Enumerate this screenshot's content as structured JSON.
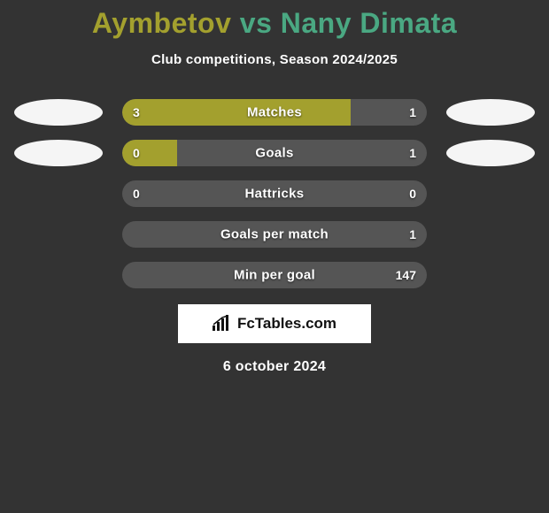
{
  "title": {
    "player1": "Aymbetov",
    "vs": " vs ",
    "player2": "Nany Dimata",
    "color1": "#a3a02e",
    "color2": "#4aa882"
  },
  "subtitle": "Club competitions, Season 2024/2025",
  "track_color": "#555555",
  "fill_color": "#a3a02e",
  "rows": [
    {
      "label": "Matches",
      "left": "3",
      "right": "1",
      "fill_pct": 75,
      "avatars": true
    },
    {
      "label": "Goals",
      "left": "0",
      "right": "1",
      "fill_pct": 18,
      "avatars": true
    },
    {
      "label": "Hattricks",
      "left": "0",
      "right": "0",
      "fill_pct": 0,
      "avatars": false
    },
    {
      "label": "Goals per match",
      "left": "",
      "right": "1",
      "fill_pct": 0,
      "avatars": false
    },
    {
      "label": "Min per goal",
      "left": "",
      "right": "147",
      "fill_pct": 0,
      "avatars": false
    }
  ],
  "footer_brand": "FcTables.com",
  "date": "6 october 2024",
  "avatar_bg": "#f5f5f5"
}
